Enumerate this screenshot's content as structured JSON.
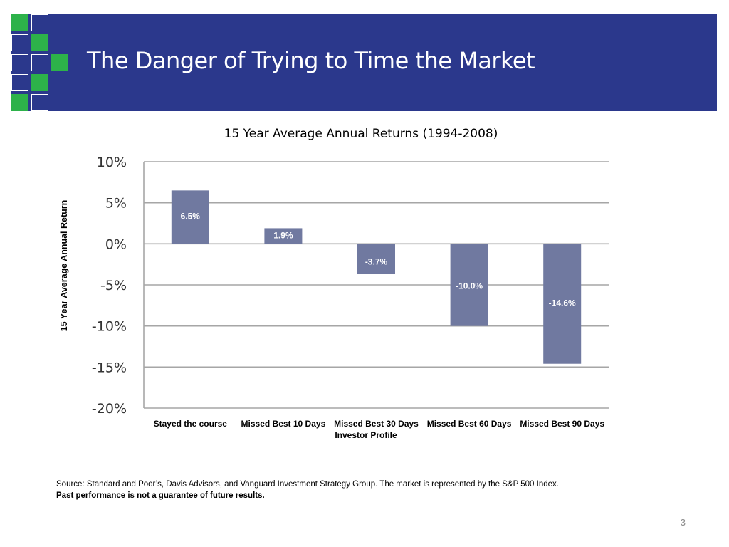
{
  "slide": {
    "title": "The Danger of Trying to Time the Market",
    "page_number": "3",
    "source_line": "Source:  Standard and Poor’s, Davis Advisors, and Vanguard Investment Strategy Group.  The market is represented by the S&P 500 Index.",
    "disclaimer": "Past performance is not a guarantee of future results.",
    "colors": {
      "header": "#2B388C",
      "logo_green": "#2DB24A",
      "bar": "#7079A0"
    }
  },
  "chart_data": {
    "type": "bar",
    "title": "15 Year Average Annual Returns (1994-2008)",
    "xlabel": "Investor Profile",
    "ylabel": "15 Year Average Annual Return",
    "categories": [
      "Stayed the course",
      "Missed Best 10 Days",
      "Missed Best 30 Days",
      "Missed Best 60 Days",
      "Missed Best 90 Days"
    ],
    "values": [
      6.5,
      1.9,
      -3.7,
      -10.0,
      -14.6
    ],
    "data_labels": [
      "6.5%",
      "1.9%",
      "-3.7%",
      "-10.0%",
      "-14.6%"
    ],
    "ylim": [
      -20,
      10
    ],
    "yticks": [
      10,
      5,
      0,
      -5,
      -10,
      -15,
      -20
    ],
    "ytick_labels": [
      "10%",
      "5%",
      "0%",
      "-5%",
      "-10%",
      "-15%",
      "-20%"
    ],
    "grid": true,
    "legend": "none"
  }
}
